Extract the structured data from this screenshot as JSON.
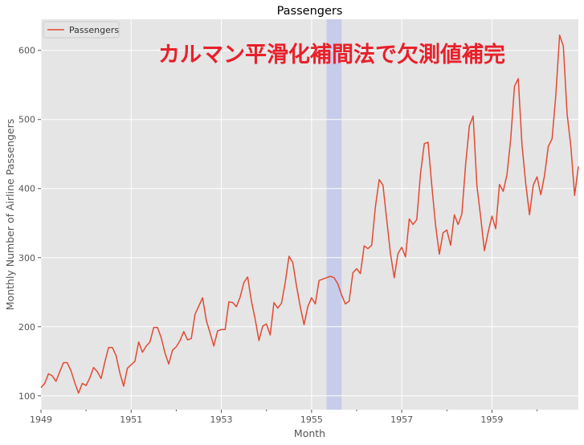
{
  "chart_data": {
    "type": "line",
    "title": "Passengers",
    "xlabel": "Month",
    "ylabel": "Monthly Number of Airline Passengers",
    "annotation": "カルマン平滑化補間法で欠測値補完",
    "legend": {
      "entries": [
        "Passengers"
      ],
      "placement": "top-left"
    },
    "grid": true,
    "x_start": "1949-01",
    "x_end": "1960-12",
    "xlim": [
      "1949-01",
      "1960-12"
    ],
    "ylim": [
      80,
      645
    ],
    "x_tick_labels": [
      "1949",
      "1951",
      "1953",
      "1955",
      "1957",
      "1959"
    ],
    "y_ticks": [
      100,
      200,
      300,
      400,
      500,
      600
    ],
    "highlight_span": {
      "start": "1955-05",
      "end": "1955-09",
      "color": "#b0b8f0"
    },
    "series": [
      {
        "name": "Passengers",
        "color": "#e24a33",
        "values": [
          112,
          118,
          132,
          129,
          121,
          135,
          148,
          148,
          136,
          119,
          104,
          118,
          115,
          126,
          141,
          135,
          125,
          149,
          170,
          170,
          158,
          133,
          114,
          140,
          145,
          150,
          178,
          163,
          172,
          178,
          199,
          199,
          184,
          162,
          146,
          166,
          171,
          180,
          193,
          181,
          183,
          218,
          230,
          242,
          209,
          191,
          172,
          194,
          196,
          196,
          236,
          235,
          229,
          243,
          264,
          272,
          237,
          211,
          180,
          201,
          204,
          188,
          235,
          227,
          234,
          264,
          302,
          293,
          259,
          229,
          203,
          229,
          242,
          233,
          267,
          269,
          271,
          273,
          271,
          262,
          246,
          233,
          237,
          278,
          284,
          277,
          317,
          313,
          318,
          374,
          413,
          405,
          355,
          306,
          271,
          306,
          315,
          301,
          356,
          348,
          355,
          422,
          465,
          467,
          404,
          347,
          305,
          336,
          340,
          318,
          362,
          348,
          363,
          435,
          491,
          505,
          404,
          359,
          310,
          337,
          360,
          342,
          406,
          396,
          420,
          472,
          548,
          559,
          463,
          407,
          362,
          405,
          417,
          391,
          419,
          461,
          472,
          535,
          622,
          606,
          508,
          461,
          390,
          432
        ]
      }
    ]
  }
}
